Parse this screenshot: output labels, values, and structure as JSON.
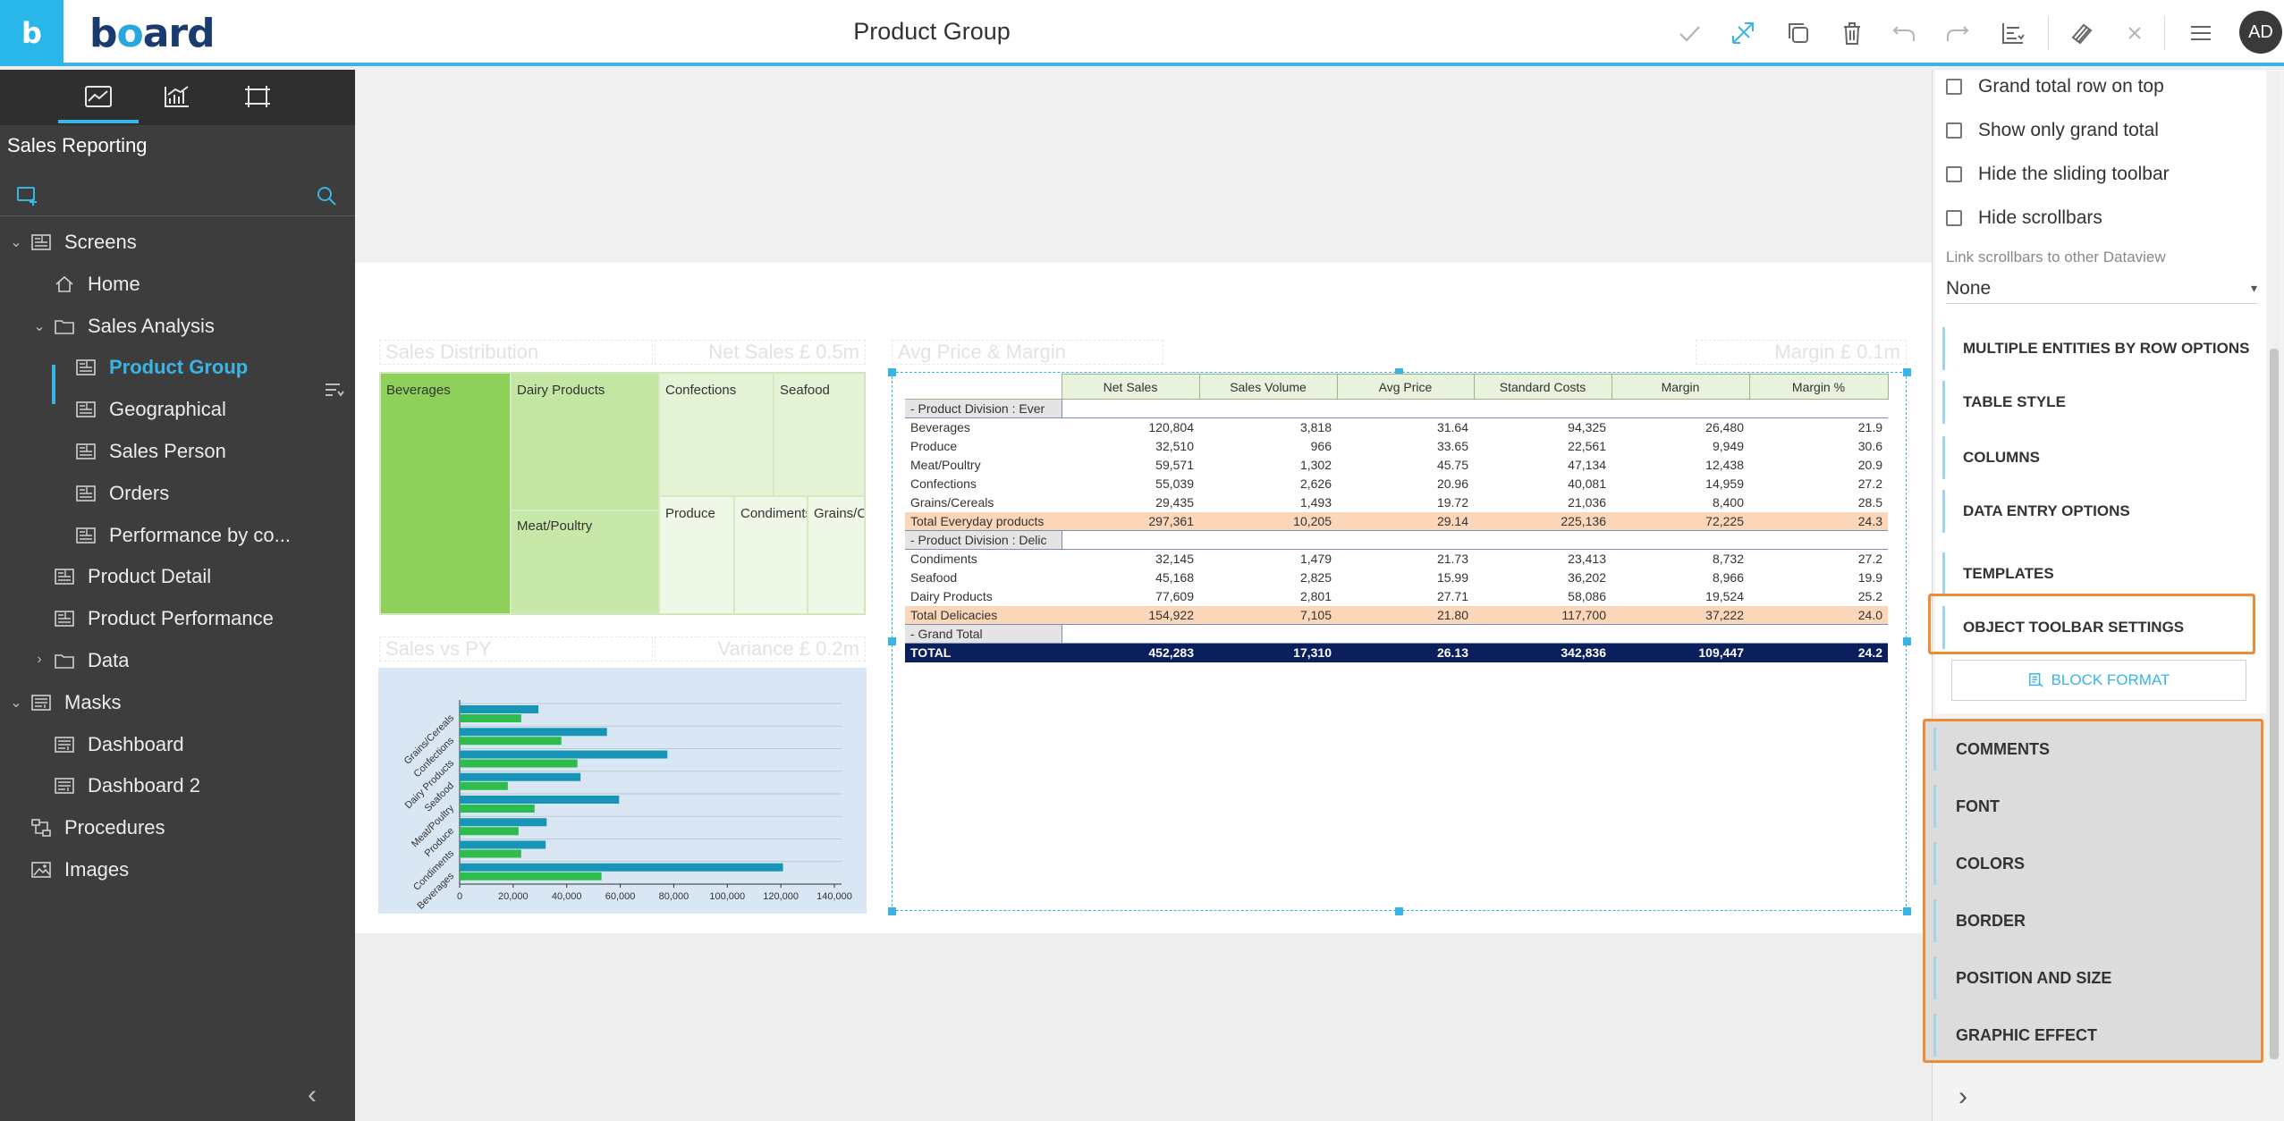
{
  "app": {
    "logo_letter": "b",
    "logo_word_a": "b",
    "logo_word_o": "o",
    "logo_word_rest": "ard",
    "screen_title": "Product Group",
    "avatar_initials": "AD"
  },
  "toolbar": {
    "icons": [
      "check-icon",
      "edit-layout-icon",
      "duplicate-icon",
      "delete-icon",
      "undo-icon",
      "redo-icon",
      "align-icon",
      "format-painter-icon",
      "close-icon",
      "menu-icon"
    ]
  },
  "sidebar": {
    "title": "Sales Reporting",
    "tree": [
      {
        "label": "Screens",
        "level": 0,
        "chevron": "down",
        "icon": "screen-icon"
      },
      {
        "label": "Home",
        "level": 1,
        "icon": "home-icon"
      },
      {
        "label": "Sales Analysis",
        "level": 1,
        "chevron": "down",
        "icon": "folder-icon"
      },
      {
        "label": "Product Group",
        "level": 2,
        "icon": "screen-icon",
        "active": true
      },
      {
        "label": "Geographical",
        "level": 2,
        "icon": "screen-icon"
      },
      {
        "label": "Sales Person",
        "level": 2,
        "icon": "screen-icon"
      },
      {
        "label": "Orders",
        "level": 2,
        "icon": "screen-icon"
      },
      {
        "label": "Performance by co...",
        "level": 2,
        "icon": "screen-icon"
      },
      {
        "label": "Product Detail",
        "level": 1,
        "icon": "screen-icon"
      },
      {
        "label": "Product Performance",
        "level": 1,
        "icon": "screen-icon"
      },
      {
        "label": "Data",
        "level": 1,
        "chevron": "right",
        "icon": "folder-icon"
      },
      {
        "label": "Masks",
        "level": 0,
        "chevron": "down",
        "icon": "mask-icon"
      },
      {
        "label": "Dashboard",
        "level": 1,
        "icon": "mask-icon"
      },
      {
        "label": "Dashboard 2",
        "level": 1,
        "icon": "mask-icon"
      },
      {
        "label": "Procedures",
        "level": 0,
        "icon": "procedure-icon"
      },
      {
        "label": "Images",
        "level": 0,
        "icon": "image-icon"
      }
    ]
  },
  "canvas": {
    "ghost_labels": {
      "sales_distribution": "Sales Distribution",
      "net_sales": "Net Sales £ 0.5m",
      "avg_price_margin": "Avg Price & Margin",
      "margin": "Margin £ 0.1m",
      "sales_vs_py": "Sales vs PY",
      "variance": "Variance £ 0.2m"
    },
    "treemap": {
      "cells": [
        "Beverages",
        "Dairy Products",
        "Confections",
        "Seafood",
        "Meat/Poultry",
        "Produce",
        "Condiments",
        "Grains/Cereals"
      ],
      "colors": {
        "beverages": "#8ed15a",
        "dairy": "#c3e6a3",
        "light": "#e4f2d6",
        "pale": "#eff7e7"
      }
    }
  },
  "chart_data": {
    "type": "bar",
    "orientation": "horizontal",
    "categories": [
      "Grains/Cereals",
      "Confections",
      "Dairy Products",
      "Seafood",
      "Meat/Poultry",
      "Produce",
      "Condiments",
      "Beverages"
    ],
    "series": [
      {
        "values": [
          29435,
          55039,
          77609,
          45168,
          59571,
          32510,
          32145,
          120804
        ],
        "color": "#1795b7"
      },
      {
        "values": [
          23000,
          38000,
          44000,
          18000,
          28000,
          22000,
          23000,
          53000
        ],
        "color": "#2ebd4c"
      }
    ],
    "xticks": [
      "0",
      "20,000",
      "40,000",
      "60,000",
      "80,000",
      "100,000",
      "120,000",
      "140,000"
    ],
    "xlim": [
      0,
      140000
    ],
    "grid": true
  },
  "dataview": {
    "columns": [
      "",
      "Net Sales",
      "Sales Volume",
      "Avg Price",
      "Standard Costs",
      "Margin",
      "Margin %"
    ],
    "rows": [
      {
        "type": "grp",
        "cells": [
          "-  Product Division : Ever"
        ]
      },
      {
        "type": "data",
        "cells": [
          "Beverages",
          "120,804",
          "3,818",
          "31.64",
          "94,325",
          "26,480",
          "21.9"
        ]
      },
      {
        "type": "data",
        "cells": [
          "Produce",
          "32,510",
          "966",
          "33.65",
          "22,561",
          "9,949",
          "30.6"
        ]
      },
      {
        "type": "data",
        "cells": [
          "Meat/Poultry",
          "59,571",
          "1,302",
          "45.75",
          "47,134",
          "12,438",
          "20.9"
        ]
      },
      {
        "type": "data",
        "cells": [
          "Confections",
          "55,039",
          "2,626",
          "20.96",
          "40,081",
          "14,959",
          "27.2"
        ]
      },
      {
        "type": "data",
        "cells": [
          "Grains/Cereals",
          "29,435",
          "1,493",
          "19.72",
          "21,036",
          "8,400",
          "28.5"
        ]
      },
      {
        "type": "subtotal",
        "cells": [
          "Total Everyday products",
          "297,361",
          "10,205",
          "29.14",
          "225,136",
          "72,225",
          "24.3"
        ]
      },
      {
        "type": "grp",
        "cells": [
          "-  Product Division : Delic"
        ]
      },
      {
        "type": "data",
        "cells": [
          "Condiments",
          "32,145",
          "1,479",
          "21.73",
          "23,413",
          "8,732",
          "27.2"
        ]
      },
      {
        "type": "data",
        "cells": [
          "Seafood",
          "45,168",
          "2,825",
          "15.99",
          "36,202",
          "8,966",
          "19.9"
        ]
      },
      {
        "type": "data",
        "cells": [
          "Dairy Products",
          "77,609",
          "2,801",
          "27.71",
          "58,086",
          "19,524",
          "25.2"
        ]
      },
      {
        "type": "subtotal",
        "cells": [
          "Total Delicacies",
          "154,922",
          "7,105",
          "21.80",
          "117,700",
          "37,222",
          "24.0"
        ]
      },
      {
        "type": "grp",
        "cells": [
          "-  Grand Total"
        ]
      },
      {
        "type": "total",
        "cells": [
          "TOTAL",
          "452,283",
          "17,310",
          "26.13",
          "342,836",
          "109,447",
          "24.2"
        ]
      }
    ]
  },
  "right_panel": {
    "checkboxes": [
      {
        "label": "Grand total row on top",
        "checked": false
      },
      {
        "label": "Show only grand total",
        "checked": false
      },
      {
        "label": "Hide the sliding toolbar",
        "checked": false
      },
      {
        "label": "Hide scrollbars",
        "checked": false
      }
    ],
    "link_scrollbars_label": "Link scrollbars to other Dataview",
    "link_scrollbars_value": "None",
    "sections": [
      "MULTIPLE ENTITIES BY ROW OPTIONS",
      "TABLE STYLE",
      "COLUMNS",
      "DATA ENTRY OPTIONS",
      "TEMPLATES",
      "OBJECT TOOLBAR SETTINGS"
    ],
    "block_format_label": "BLOCK FORMAT",
    "block_sections": [
      "COMMENTS",
      "FONT",
      "COLORS",
      "BORDER",
      "POSITION AND SIZE",
      "GRAPHIC EFFECT"
    ],
    "highlight_color": "#ef8b35",
    "accent_color": "#38b5e5"
  }
}
